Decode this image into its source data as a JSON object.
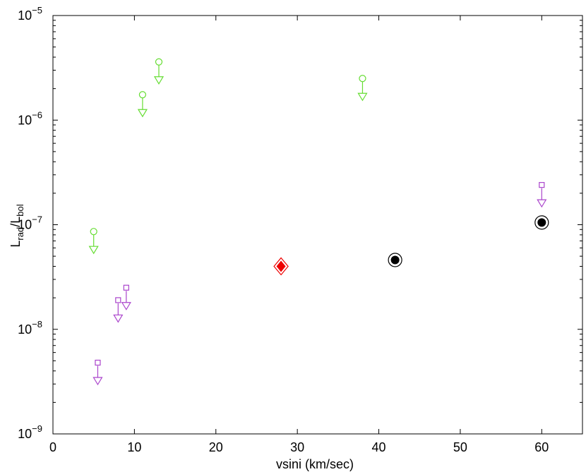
{
  "chart_data": {
    "type": "scatter",
    "title": "",
    "xlabel": "vsini  (km/sec)",
    "ylabel": {
      "main_1": "L",
      "sub_1": "rad",
      "slash": "/",
      "main_2": "L",
      "sub_2": "bol"
    },
    "xlim": [
      0,
      65
    ],
    "ylim": [
      1e-09,
      1e-05
    ],
    "y_scale": "log",
    "grid": false,
    "legend": "none",
    "x_ticks": [
      {
        "value": 0,
        "label": "0"
      },
      {
        "value": 10,
        "label": "10"
      },
      {
        "value": 20,
        "label": "20"
      },
      {
        "value": 30,
        "label": "30"
      },
      {
        "value": 40,
        "label": "40"
      },
      {
        "value": 50,
        "label": "50"
      },
      {
        "value": 60,
        "label": "60"
      }
    ],
    "y_ticks": [
      {
        "value": 1e-09,
        "base": "10",
        "exp": "−9"
      },
      {
        "value": 1e-08,
        "base": "10",
        "exp": "−8"
      },
      {
        "value": 1e-07,
        "base": "10",
        "exp": "−7"
      },
      {
        "value": 1e-06,
        "base": "10",
        "exp": "−6"
      },
      {
        "value": 1e-05,
        "base": "10",
        "exp": "−5"
      }
    ],
    "colors": {
      "green": "#66dd33",
      "purple": "#aa44cc",
      "red": "#ee0000",
      "black": "#000000"
    },
    "series": [
      {
        "marker": "circle-upper-limit",
        "color": "#66dd33",
        "points": [
          {
            "x": 5,
            "y": 8.6e-08
          },
          {
            "x": 11,
            "y": 1.75e-06
          },
          {
            "x": 13,
            "y": 3.6e-06
          },
          {
            "x": 38,
            "y": 2.5e-06
          }
        ]
      },
      {
        "marker": "square-upper-limit",
        "color": "#aa44cc",
        "points": [
          {
            "x": 5.5,
            "y": 4.8e-09
          },
          {
            "x": 8,
            "y": 1.9e-08
          },
          {
            "x": 9,
            "y": 2.5e-08
          },
          {
            "x": 60,
            "y": 2.4e-07
          }
        ]
      },
      {
        "marker": "diamond",
        "color": "#ee0000",
        "points": [
          {
            "x": 28,
            "y": 4e-08
          }
        ]
      },
      {
        "marker": "circled-dot",
        "color": "#000000",
        "points": [
          {
            "x": 42,
            "y": 4.6e-08
          },
          {
            "x": 60,
            "y": 1.05e-07
          }
        ]
      }
    ]
  }
}
